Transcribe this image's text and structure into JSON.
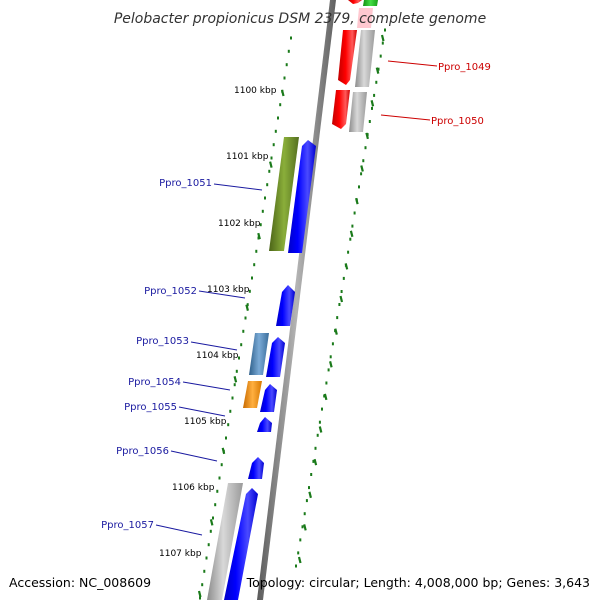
{
  "title": "Pelobacter propionicus DSM 2379, complete genome",
  "footer": {
    "accession": "Accession: NC_008609",
    "summary": "Topology: circular; Length: 4,008,000 bp; Genes: 3,643"
  },
  "colors": {
    "backbone": "#808080",
    "tick": "#1a7a1a",
    "forward_label": "#1a1aa0",
    "reverse_label": "#cc0000",
    "cds_forward": "#0000ff",
    "cds_reverse": "#ff0000",
    "cog_olive": "#6b8e23",
    "cog_steelblue": "#4682b4",
    "cog_orange": "#ff8c00",
    "cog_grey": "#b0b0b0",
    "cog_green": "#22bb22",
    "cog_pink": "#ffc0cb"
  },
  "scale_labels": [
    "1100 kbp",
    "1101 kbp",
    "1102 kbp",
    "1103 kbp",
    "1104 kbp",
    "1105 kbp",
    "1106 kbp",
    "1107 kbp"
  ],
  "genes_forward": [
    {
      "name": "Ppro_1051"
    },
    {
      "name": "Ppro_1052"
    },
    {
      "name": "Ppro_1053"
    },
    {
      "name": "Ppro_1054"
    },
    {
      "name": "Ppro_1055"
    },
    {
      "name": "Ppro_1056"
    },
    {
      "name": "Ppro_1057"
    }
  ],
  "genes_reverse": [
    {
      "name": "Ppro_1049"
    },
    {
      "name": "Ppro_1050"
    }
  ]
}
